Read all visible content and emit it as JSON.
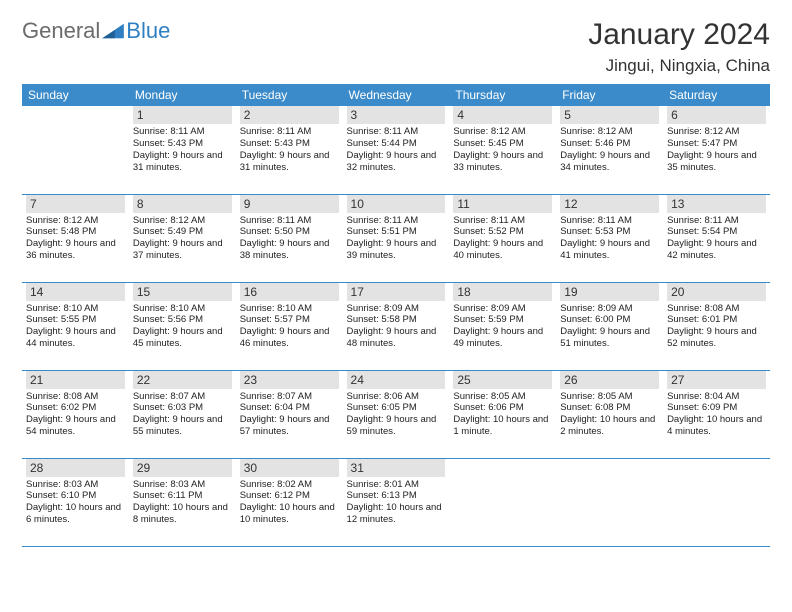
{
  "logo": {
    "part1": "General",
    "part2": "Blue"
  },
  "title": "January 2024",
  "location": "Jingui, Ningxia, China",
  "colors": {
    "header_bg": "#3b8bca",
    "header_text": "#ffffff",
    "daynum_bg": "#e3e3e3",
    "border": "#3b8bca",
    "logo_gray": "#6b6b6b",
    "logo_blue": "#2f7fc2"
  },
  "weekdays": [
    "Sunday",
    "Monday",
    "Tuesday",
    "Wednesday",
    "Thursday",
    "Friday",
    "Saturday"
  ],
  "weeks": [
    [
      {
        "day": "",
        "sunrise": "",
        "sunset": "",
        "daylight": ""
      },
      {
        "day": "1",
        "sunrise": "Sunrise: 8:11 AM",
        "sunset": "Sunset: 5:43 PM",
        "daylight": "Daylight: 9 hours and 31 minutes."
      },
      {
        "day": "2",
        "sunrise": "Sunrise: 8:11 AM",
        "sunset": "Sunset: 5:43 PM",
        "daylight": "Daylight: 9 hours and 31 minutes."
      },
      {
        "day": "3",
        "sunrise": "Sunrise: 8:11 AM",
        "sunset": "Sunset: 5:44 PM",
        "daylight": "Daylight: 9 hours and 32 minutes."
      },
      {
        "day": "4",
        "sunrise": "Sunrise: 8:12 AM",
        "sunset": "Sunset: 5:45 PM",
        "daylight": "Daylight: 9 hours and 33 minutes."
      },
      {
        "day": "5",
        "sunrise": "Sunrise: 8:12 AM",
        "sunset": "Sunset: 5:46 PM",
        "daylight": "Daylight: 9 hours and 34 minutes."
      },
      {
        "day": "6",
        "sunrise": "Sunrise: 8:12 AM",
        "sunset": "Sunset: 5:47 PM",
        "daylight": "Daylight: 9 hours and 35 minutes."
      }
    ],
    [
      {
        "day": "7",
        "sunrise": "Sunrise: 8:12 AM",
        "sunset": "Sunset: 5:48 PM",
        "daylight": "Daylight: 9 hours and 36 minutes."
      },
      {
        "day": "8",
        "sunrise": "Sunrise: 8:12 AM",
        "sunset": "Sunset: 5:49 PM",
        "daylight": "Daylight: 9 hours and 37 minutes."
      },
      {
        "day": "9",
        "sunrise": "Sunrise: 8:11 AM",
        "sunset": "Sunset: 5:50 PM",
        "daylight": "Daylight: 9 hours and 38 minutes."
      },
      {
        "day": "10",
        "sunrise": "Sunrise: 8:11 AM",
        "sunset": "Sunset: 5:51 PM",
        "daylight": "Daylight: 9 hours and 39 minutes."
      },
      {
        "day": "11",
        "sunrise": "Sunrise: 8:11 AM",
        "sunset": "Sunset: 5:52 PM",
        "daylight": "Daylight: 9 hours and 40 minutes."
      },
      {
        "day": "12",
        "sunrise": "Sunrise: 8:11 AM",
        "sunset": "Sunset: 5:53 PM",
        "daylight": "Daylight: 9 hours and 41 minutes."
      },
      {
        "day": "13",
        "sunrise": "Sunrise: 8:11 AM",
        "sunset": "Sunset: 5:54 PM",
        "daylight": "Daylight: 9 hours and 42 minutes."
      }
    ],
    [
      {
        "day": "14",
        "sunrise": "Sunrise: 8:10 AM",
        "sunset": "Sunset: 5:55 PM",
        "daylight": "Daylight: 9 hours and 44 minutes."
      },
      {
        "day": "15",
        "sunrise": "Sunrise: 8:10 AM",
        "sunset": "Sunset: 5:56 PM",
        "daylight": "Daylight: 9 hours and 45 minutes."
      },
      {
        "day": "16",
        "sunrise": "Sunrise: 8:10 AM",
        "sunset": "Sunset: 5:57 PM",
        "daylight": "Daylight: 9 hours and 46 minutes."
      },
      {
        "day": "17",
        "sunrise": "Sunrise: 8:09 AM",
        "sunset": "Sunset: 5:58 PM",
        "daylight": "Daylight: 9 hours and 48 minutes."
      },
      {
        "day": "18",
        "sunrise": "Sunrise: 8:09 AM",
        "sunset": "Sunset: 5:59 PM",
        "daylight": "Daylight: 9 hours and 49 minutes."
      },
      {
        "day": "19",
        "sunrise": "Sunrise: 8:09 AM",
        "sunset": "Sunset: 6:00 PM",
        "daylight": "Daylight: 9 hours and 51 minutes."
      },
      {
        "day": "20",
        "sunrise": "Sunrise: 8:08 AM",
        "sunset": "Sunset: 6:01 PM",
        "daylight": "Daylight: 9 hours and 52 minutes."
      }
    ],
    [
      {
        "day": "21",
        "sunrise": "Sunrise: 8:08 AM",
        "sunset": "Sunset: 6:02 PM",
        "daylight": "Daylight: 9 hours and 54 minutes."
      },
      {
        "day": "22",
        "sunrise": "Sunrise: 8:07 AM",
        "sunset": "Sunset: 6:03 PM",
        "daylight": "Daylight: 9 hours and 55 minutes."
      },
      {
        "day": "23",
        "sunrise": "Sunrise: 8:07 AM",
        "sunset": "Sunset: 6:04 PM",
        "daylight": "Daylight: 9 hours and 57 minutes."
      },
      {
        "day": "24",
        "sunrise": "Sunrise: 8:06 AM",
        "sunset": "Sunset: 6:05 PM",
        "daylight": "Daylight: 9 hours and 59 minutes."
      },
      {
        "day": "25",
        "sunrise": "Sunrise: 8:05 AM",
        "sunset": "Sunset: 6:06 PM",
        "daylight": "Daylight: 10 hours and 1 minute."
      },
      {
        "day": "26",
        "sunrise": "Sunrise: 8:05 AM",
        "sunset": "Sunset: 6:08 PM",
        "daylight": "Daylight: 10 hours and 2 minutes."
      },
      {
        "day": "27",
        "sunrise": "Sunrise: 8:04 AM",
        "sunset": "Sunset: 6:09 PM",
        "daylight": "Daylight: 10 hours and 4 minutes."
      }
    ],
    [
      {
        "day": "28",
        "sunrise": "Sunrise: 8:03 AM",
        "sunset": "Sunset: 6:10 PM",
        "daylight": "Daylight: 10 hours and 6 minutes."
      },
      {
        "day": "29",
        "sunrise": "Sunrise: 8:03 AM",
        "sunset": "Sunset: 6:11 PM",
        "daylight": "Daylight: 10 hours and 8 minutes."
      },
      {
        "day": "30",
        "sunrise": "Sunrise: 8:02 AM",
        "sunset": "Sunset: 6:12 PM",
        "daylight": "Daylight: 10 hours and 10 minutes."
      },
      {
        "day": "31",
        "sunrise": "Sunrise: 8:01 AM",
        "sunset": "Sunset: 6:13 PM",
        "daylight": "Daylight: 10 hours and 12 minutes."
      },
      {
        "day": "",
        "sunrise": "",
        "sunset": "",
        "daylight": ""
      },
      {
        "day": "",
        "sunrise": "",
        "sunset": "",
        "daylight": ""
      },
      {
        "day": "",
        "sunrise": "",
        "sunset": "",
        "daylight": ""
      }
    ]
  ]
}
